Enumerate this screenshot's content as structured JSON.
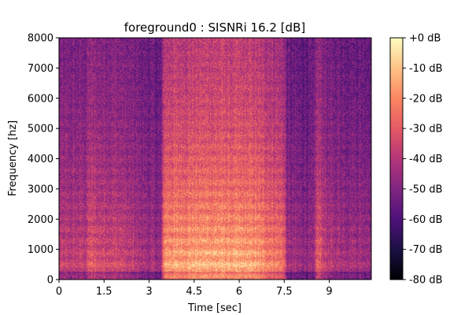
{
  "chart_data": {
    "type": "heatmap",
    "title": "foreground0 : SISNRi 16.2 [dB]",
    "xlabel": "Time [sec]",
    "ylabel": "Frequency [hz]",
    "xlim": [
      0,
      10.4
    ],
    "ylim": [
      0,
      8000
    ],
    "x_ticks": [
      0,
      1.5,
      3,
      4.5,
      6,
      7.5,
      9
    ],
    "x_tick_labels": [
      "0",
      "1.5",
      "3",
      "4.5",
      "6",
      "7.5",
      "9"
    ],
    "y_ticks": [
      0,
      1000,
      2000,
      3000,
      4000,
      5000,
      6000,
      7000,
      8000
    ],
    "y_tick_labels": [
      "0",
      "1000",
      "2000",
      "3000",
      "4000",
      "5000",
      "6000",
      "7000",
      "8000"
    ],
    "colorbar": {
      "colormap": "magma",
      "range": [
        -80,
        0
      ],
      "ticks": [
        0,
        -10,
        -20,
        -30,
        -40,
        -50,
        -60,
        -70,
        -80
      ],
      "tick_labels": [
        "+0 dB",
        "-10 dB",
        "-20 dB",
        "-30 dB",
        "-40 dB",
        "-50 dB",
        "-60 dB",
        "-70 dB",
        "-80 dB"
      ]
    },
    "energy_profile_time": [
      [
        0.0,
        0.55
      ],
      [
        0.9,
        0.55
      ],
      [
        1.0,
        0.68
      ],
      [
        1.3,
        0.62
      ],
      [
        2.0,
        0.6
      ],
      [
        2.6,
        0.5
      ],
      [
        3.4,
        0.42
      ],
      [
        3.5,
        0.9
      ],
      [
        5.0,
        0.95
      ],
      [
        6.5,
        0.92
      ],
      [
        7.5,
        0.75
      ],
      [
        7.6,
        0.45
      ],
      [
        8.5,
        0.4
      ],
      [
        8.6,
        0.72
      ],
      [
        9.0,
        0.5
      ],
      [
        10.4,
        0.45
      ]
    ],
    "colors": {
      "magma_stops": [
        "#000004",
        "#1c1044",
        "#4f127b",
        "#812581",
        "#b5367a",
        "#e55964",
        "#fb8761",
        "#fec287",
        "#fcfdbf"
      ]
    }
  }
}
